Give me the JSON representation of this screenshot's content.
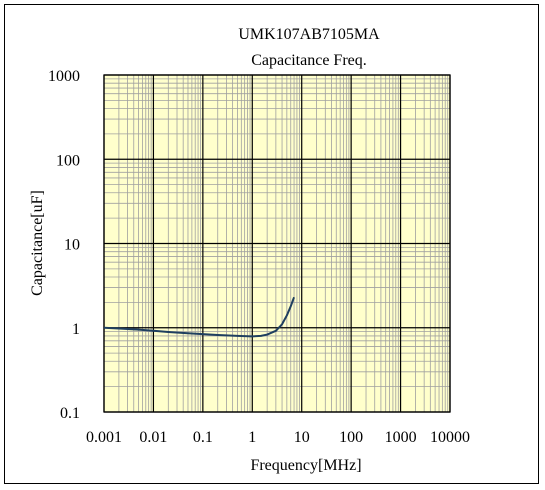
{
  "chart_data": {
    "type": "line",
    "title": "UMK107AB7105MA",
    "subtitle": "Capacitance Freq.",
    "xlabel": "Frequency[MHz]",
    "ylabel": "Capacitance[uF]",
    "x_scale": "log",
    "y_scale": "log",
    "xlim": [
      0.001,
      10000
    ],
    "ylim": [
      0.1,
      1000
    ],
    "x_ticks": [
      0.001,
      0.01,
      0.1,
      1,
      10,
      100,
      1000,
      10000
    ],
    "x_tick_labels": [
      "0.001",
      "0.01",
      "0.1",
      "1",
      "10",
      "100",
      "1000",
      "10000"
    ],
    "y_ticks": [
      0.1,
      1,
      10,
      100,
      1000
    ],
    "y_tick_labels": [
      "0.1",
      "1",
      "10",
      "100",
      "1000"
    ],
    "grid": true,
    "legend": "none",
    "colors": {
      "plot_background": "#ffffcc",
      "grid": "#a0a0a0",
      "major_grid": "#000000",
      "line": "#1f3f5f"
    },
    "series": [
      {
        "x": [
          0.001,
          0.002,
          0.005,
          0.01,
          0.02,
          0.05,
          0.1,
          0.2,
          0.5,
          1,
          1.5,
          2,
          3,
          4,
          5,
          6,
          7
        ],
        "values": [
          1.0,
          0.98,
          0.95,
          0.92,
          0.89,
          0.86,
          0.84,
          0.82,
          0.8,
          0.79,
          0.8,
          0.83,
          0.92,
          1.1,
          1.4,
          1.8,
          2.3
        ]
      }
    ]
  }
}
